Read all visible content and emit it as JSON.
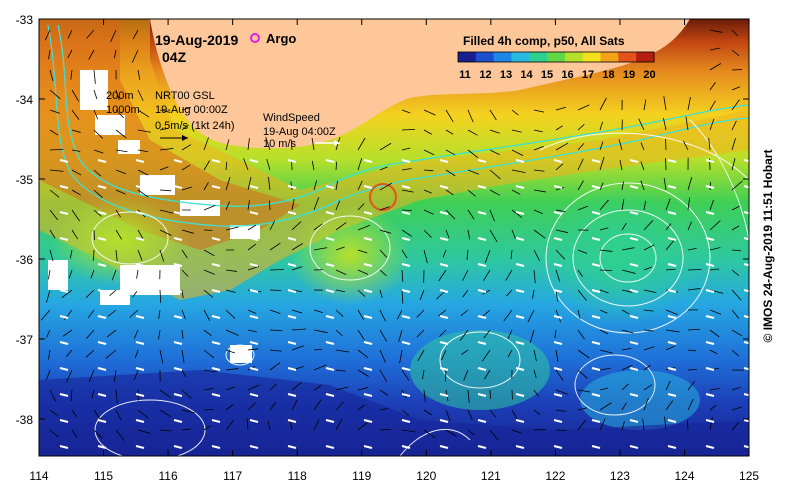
{
  "map": {
    "date": "19-Aug-2019",
    "time": "04Z",
    "argo_label": "Argo",
    "product": "Filled 4h comp, p50, All Sats",
    "colorbar": {
      "ticks": [
        "11",
        "12",
        "13",
        "14",
        "15",
        "16",
        "17",
        "18",
        "19",
        "20"
      ],
      "colors": [
        "#1a1f8f",
        "#1d4fcf",
        "#1f86e6",
        "#28b9e0",
        "#2fd08f",
        "#63d648",
        "#b5e02a",
        "#f2e01e",
        "#f3a21a",
        "#e2521a",
        "#b51e12"
      ]
    },
    "current_legend": {
      "contour_200": "200m",
      "contour_1000": "1000m",
      "source": "NRT00 GSL",
      "time": "19-Aug 00:00Z",
      "scale": "0.5m/s (1kt 24h)"
    },
    "wind_legend": {
      "title": "WindSpeed",
      "time": "19-Aug 04:00Z",
      "scale": "10 m/s"
    },
    "lat_labels": [
      "-33",
      "-34",
      "-35",
      "-36",
      "-37",
      "-38"
    ],
    "lon_labels": [
      "114",
      "115",
      "116",
      "117",
      "118",
      "119",
      "120",
      "121",
      "122",
      "123",
      "124",
      "125"
    ],
    "credit": "© IMOS 24-Aug-2019 11:51 Hobart",
    "colors": {
      "land": "#fdc79a",
      "frame": "#000000",
      "coast": "#40e0d0"
    }
  }
}
